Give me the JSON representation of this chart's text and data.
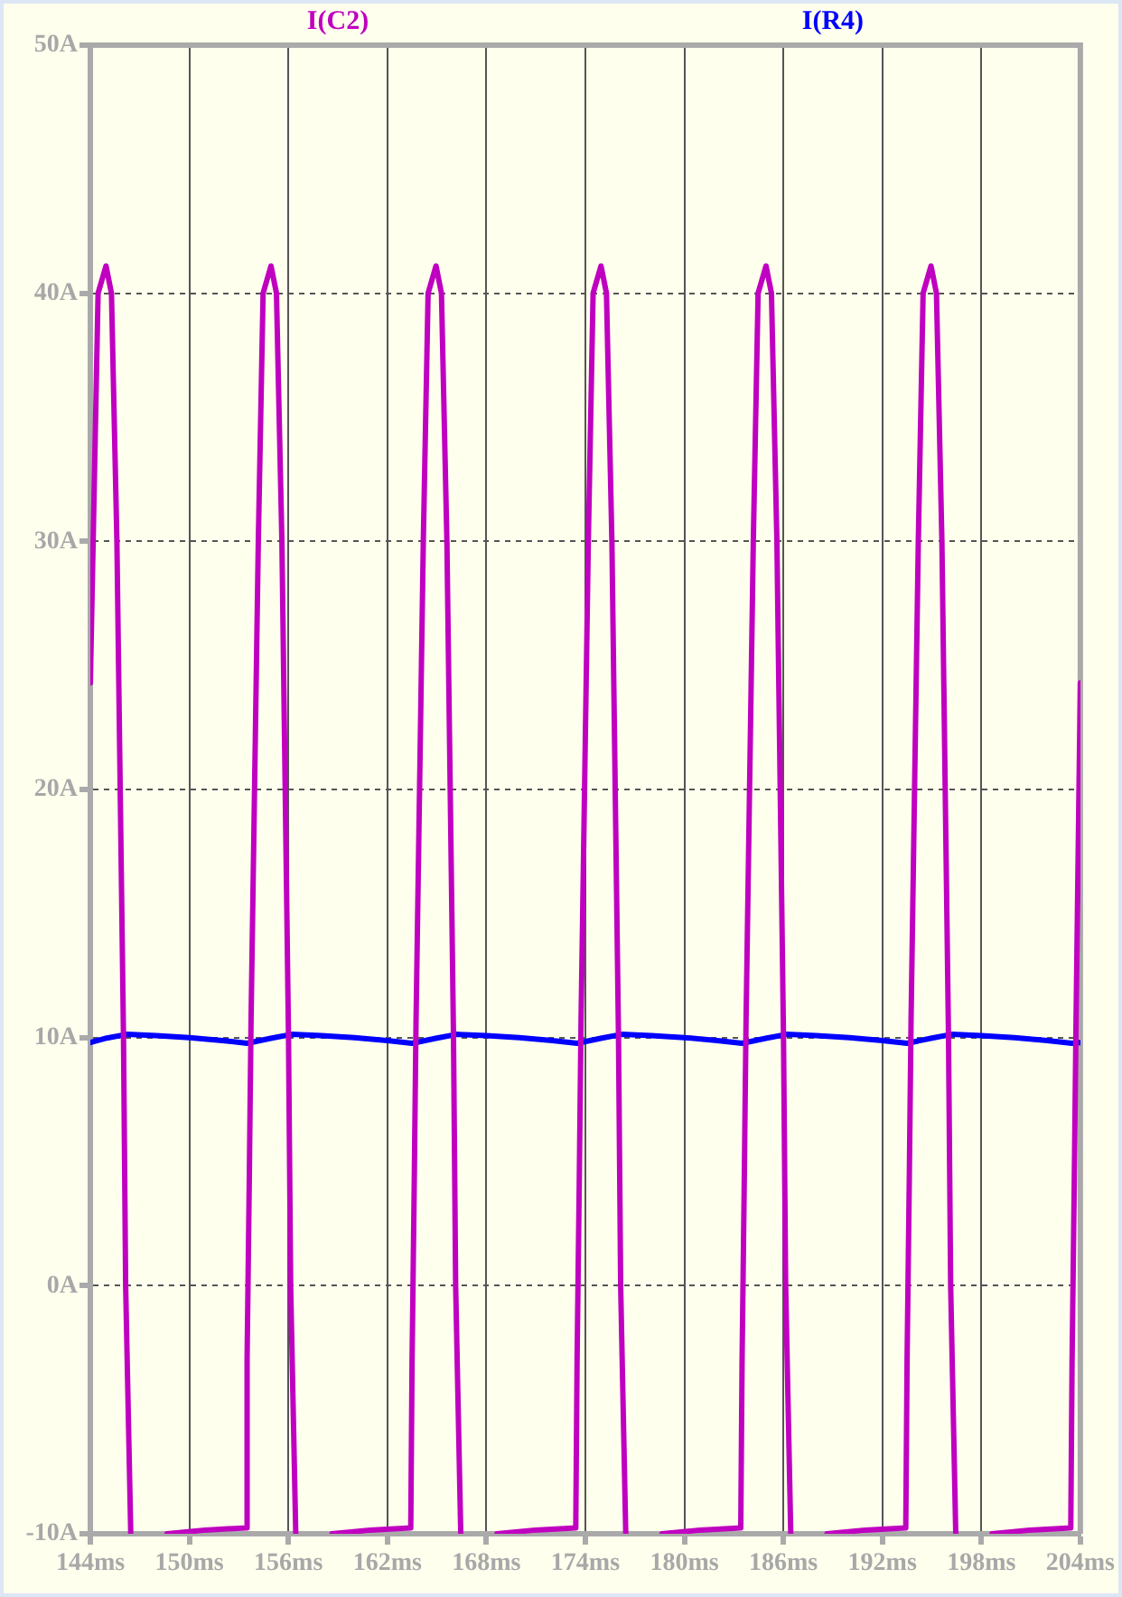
{
  "chart_data": {
    "type": "line",
    "legend": "top",
    "grid": true,
    "marker": "none",
    "line_style": "solid",
    "xlim": [
      144,
      204
    ],
    "xticks": [
      {
        "value": 144,
        "label": "144ms"
      },
      {
        "value": 150,
        "label": "150ms"
      },
      {
        "value": 156,
        "label": "156ms"
      },
      {
        "value": 162,
        "label": "162ms"
      },
      {
        "value": 168,
        "label": "168ms"
      },
      {
        "value": 174,
        "label": "174ms"
      },
      {
        "value": 180,
        "label": "180ms"
      },
      {
        "value": 186,
        "label": "186ms"
      },
      {
        "value": 192,
        "label": "192ms"
      },
      {
        "value": 198,
        "label": "198ms"
      },
      {
        "value": 204,
        "label": "204ms"
      }
    ],
    "ylim": [
      -10,
      50
    ],
    "yticks": [
      {
        "value": -10,
        "label": "-10A"
      },
      {
        "value": 0,
        "label": "0A"
      },
      {
        "value": 10,
        "label": "10A"
      },
      {
        "value": 20,
        "label": "20A"
      },
      {
        "value": 30,
        "label": "30A"
      },
      {
        "value": 40,
        "label": "40A"
      },
      {
        "value": 50,
        "label": "50A"
      }
    ],
    "series": [
      {
        "name": "I(C2)",
        "color": "#c000c0",
        "x": [
          144,
          144.47,
          144.95,
          145.28,
          145.61,
          146.01,
          146.14,
          146.45,
          147.5,
          148.65,
          150.95,
          153.42,
          153.5,
          153.63,
          153.74,
          154.18,
          154.47,
          154.95,
          155.28,
          155.61,
          156.01,
          156.14,
          156.45,
          157.5,
          158.65,
          160.95,
          163.42,
          163.5,
          163.63,
          163.74,
          164.18,
          164.47,
          164.95,
          165.28,
          165.61,
          166.01,
          166.14,
          166.45,
          167.5,
          168.65,
          170.95,
          173.42,
          173.5,
          173.63,
          173.74,
          174.18,
          174.47,
          174.95,
          175.28,
          175.61,
          176.01,
          176.14,
          176.45,
          177.5,
          178.65,
          180.95,
          183.42,
          183.5,
          183.63,
          183.74,
          184.18,
          184.47,
          184.95,
          185.28,
          185.61,
          186.01,
          186.14,
          186.45,
          187.5,
          188.65,
          190.95,
          193.42,
          193.5,
          193.63,
          193.74,
          194.18,
          194.47,
          194.95,
          195.28,
          195.61,
          196.01,
          196.14,
          196.45,
          197.5,
          198.65,
          200.95,
          203.42,
          203.5,
          203.63,
          203.74,
          204
        ],
        "values": [
          24.3,
          40,
          41.1,
          40,
          30,
          10,
          0,
          -10,
          null,
          -10,
          -9.85,
          -9.76,
          -2.95,
          4.1,
          10.7,
          30,
          40,
          41.1,
          40,
          30,
          10,
          0,
          -10,
          null,
          -10,
          -9.85,
          -9.76,
          -2.95,
          4.1,
          10.7,
          30,
          40,
          41.1,
          40,
          30,
          10,
          0,
          -10,
          null,
          -10,
          -9.85,
          -9.76,
          -2.95,
          4.1,
          10.7,
          30,
          40,
          41.1,
          40,
          30,
          10,
          0,
          -10,
          null,
          -10,
          -9.85,
          -9.76,
          -2.95,
          4.1,
          10.7,
          30,
          40,
          41.1,
          40,
          30,
          10,
          0,
          -10,
          null,
          -10,
          -9.85,
          -9.76,
          -2.95,
          4.1,
          10.7,
          30,
          40,
          41.1,
          40,
          30,
          10,
          0,
          -10,
          null,
          -10,
          -9.85,
          -9.76,
          -2.95,
          4.1,
          10.7,
          24.3
        ]
      },
      {
        "name": "I(R4)",
        "color": "#0000ff",
        "x": [
          144,
          145,
          146.2,
          148,
          150,
          152,
          153.5,
          155,
          156.2,
          158,
          160,
          162,
          163.5,
          165,
          166.2,
          168,
          170,
          172,
          173.5,
          175,
          176.2,
          178,
          180,
          182,
          183.5,
          185,
          186.2,
          188,
          190,
          192,
          193.5,
          195,
          196.2,
          198,
          200,
          202,
          203.5,
          204
        ],
        "values": [
          9.8,
          9.98,
          10.13,
          10.08,
          10,
          9.88,
          9.77,
          9.98,
          10.13,
          10.08,
          10,
          9.88,
          9.77,
          9.98,
          10.13,
          10.08,
          10,
          9.88,
          9.77,
          9.98,
          10.13,
          10.08,
          10,
          9.88,
          9.77,
          9.98,
          10.13,
          10.08,
          10,
          9.88,
          9.77,
          9.98,
          10.13,
          10.08,
          10,
          9.88,
          9.77,
          9.8
        ]
      }
    ]
  }
}
